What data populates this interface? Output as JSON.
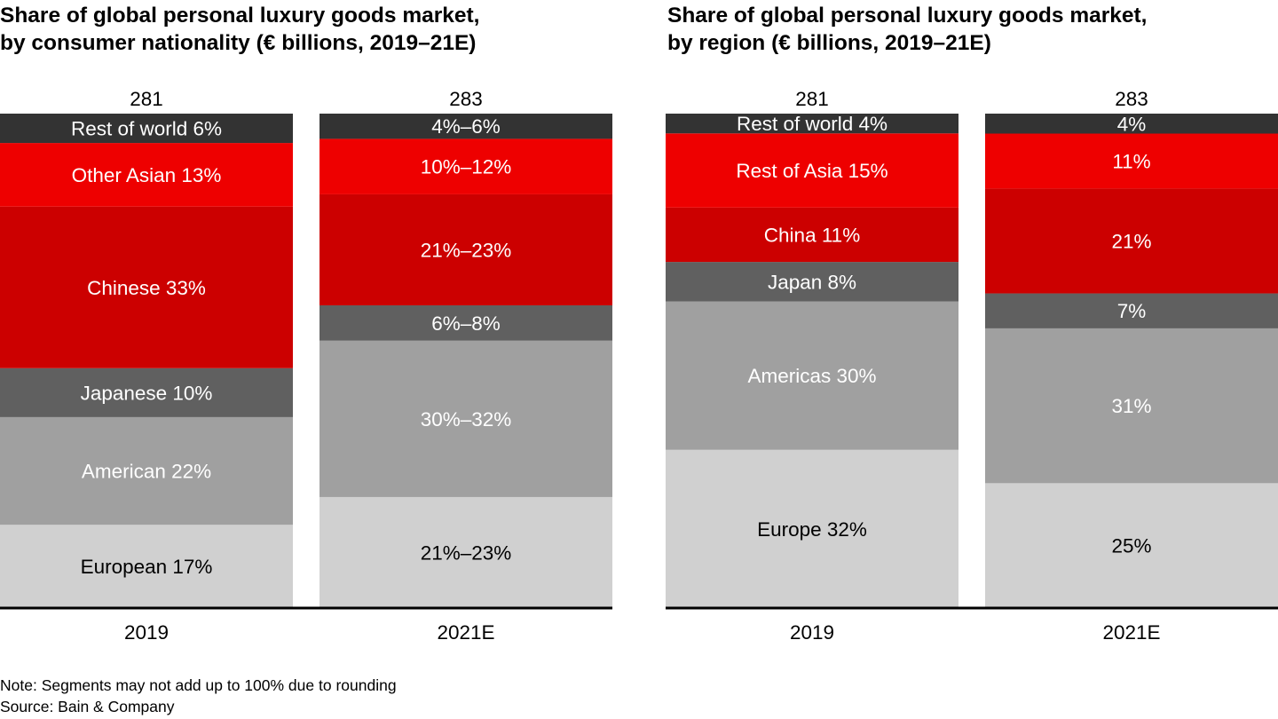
{
  "chart_data": [
    {
      "type": "stacked-bar",
      "title": "Share of global personal luxury goods market,\nby consumer nationality (€ billions, 2019–21E)",
      "categories": [
        "2019",
        "2021E"
      ],
      "totals": [
        "281",
        "283"
      ],
      "segment_colors": [
        "#d0d0d0",
        "#a0a0a0",
        "#606060",
        "#cc0000",
        "#ee0000",
        "#333333"
      ],
      "bars": [
        {
          "segments": [
            {
              "label": "European 17%",
              "value": 17
            },
            {
              "label": "American 22%",
              "value": 22
            },
            {
              "label": "Japanese 10%",
              "value": 10
            },
            {
              "label": "Chinese 33%",
              "value": 33
            },
            {
              "label": "Other Asian 13%",
              "value": 13
            },
            {
              "label": "Rest of world 6%",
              "value": 6
            }
          ]
        },
        {
          "segments": [
            {
              "label": "21%–23%",
              "value": [
                21,
                23
              ]
            },
            {
              "label": "30%–32%",
              "value": [
                30,
                32
              ]
            },
            {
              "label": "6%–8%",
              "value": [
                6,
                8
              ]
            },
            {
              "label": "21%–23%",
              "value": [
                21,
                23
              ]
            },
            {
              "label": "10%–12%",
              "value": [
                10,
                12
              ]
            },
            {
              "label": "4%–6%",
              "value": [
                4,
                6
              ]
            }
          ]
        }
      ]
    },
    {
      "type": "stacked-bar",
      "title": "Share of global personal luxury goods market,\nby region (€ billions, 2019–21E)",
      "categories": [
        "2019",
        "2021E"
      ],
      "totals": [
        "281",
        "283"
      ],
      "segment_colors": [
        "#d0d0d0",
        "#a0a0a0",
        "#606060",
        "#cc0000",
        "#ee0000",
        "#333333"
      ],
      "bars": [
        {
          "segments": [
            {
              "label": "Europe 32%",
              "value": 32
            },
            {
              "label": "Americas 30%",
              "value": 30
            },
            {
              "label": "Japan 8%",
              "value": 8
            },
            {
              "label": "China 11%",
              "value": 11
            },
            {
              "label": "Rest of Asia 15%",
              "value": 15
            },
            {
              "label": "Rest of world 4%",
              "value": 4
            }
          ]
        },
        {
          "segments": [
            {
              "label": "25%",
              "value": 25
            },
            {
              "label": "31%",
              "value": 31
            },
            {
              "label": "7%",
              "value": 7
            },
            {
              "label": "21%",
              "value": 21
            },
            {
              "label": "11%",
              "value": 11
            },
            {
              "label": "4%",
              "value": 4
            }
          ]
        }
      ]
    }
  ],
  "footer": {
    "note": "Note: Segments may not add up to 100% due to rounding",
    "source": "Source: Bain & Company"
  }
}
